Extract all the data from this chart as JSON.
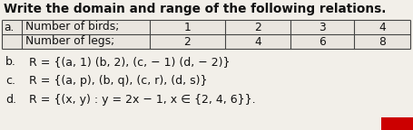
{
  "title": "Write the domain and range of the following relations.",
  "title_fontsize": 9.8,
  "row1_label": "Number of birds;",
  "row2_label": "Number of legs;",
  "row1_values": [
    "1",
    "2",
    "3",
    "4"
  ],
  "row2_values": [
    "2",
    "4",
    "6",
    "8"
  ],
  "line_b_label": "b.",
  "line_b_text": "R = {(a, 1) (b, 2), (c, − 1) (d, − 2)}",
  "line_c_label": "c.",
  "line_c_text": "R = {(a, p), (b, q), (c, r), (d, s)}",
  "line_d_label": "d.",
  "line_d_text": "R = {(x, y) : y = 2x − 1, x ∈ {2, 4, 6}}.",
  "bg_color": "#f2efe9",
  "text_color": "#111111",
  "table_bg": "#e9e5df",
  "border_color": "#444444",
  "font_size_body": 9.0,
  "font_size_table": 8.8,
  "red_box_color": "#cc0000"
}
